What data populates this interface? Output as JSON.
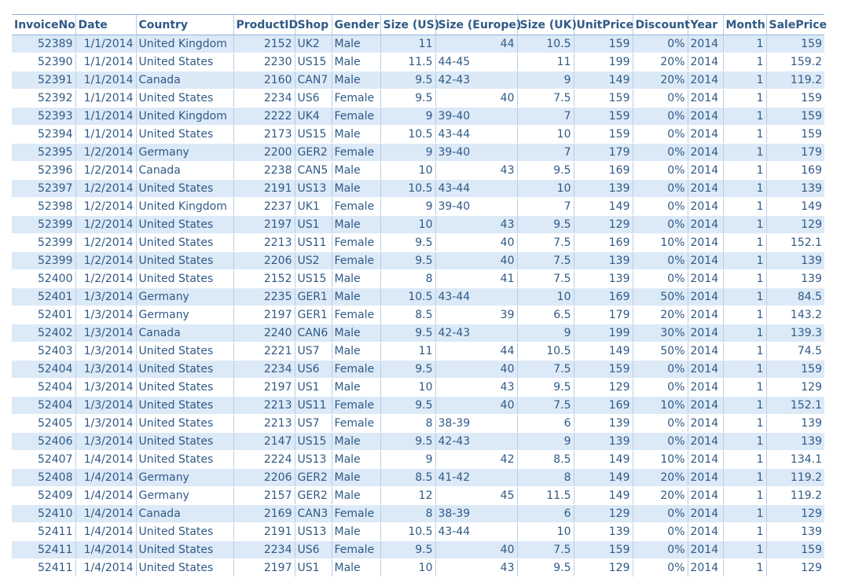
{
  "columns": [
    {
      "label": "InvoiceNo",
      "align": "num"
    },
    {
      "label": "Date",
      "align": "num"
    },
    {
      "label": "Country",
      "align": "txt"
    },
    {
      "label": "ProductID",
      "align": "num"
    },
    {
      "label": "Shop",
      "align": "txt"
    },
    {
      "label": "Gender",
      "align": "txt"
    },
    {
      "label": "Size (US)",
      "align": "num"
    },
    {
      "label": "Size (Europe)",
      "align": "mixed"
    },
    {
      "label": "Size (UK)",
      "align": "num"
    },
    {
      "label": "UnitPrice",
      "align": "num"
    },
    {
      "label": "Discount",
      "align": "num"
    },
    {
      "label": "Year",
      "align": "txt"
    },
    {
      "label": "Month",
      "align": "num"
    },
    {
      "label": "SalePrice",
      "align": "num"
    }
  ],
  "rows": [
    [
      "52389",
      "1/1/2014",
      "United Kingdom",
      "2152",
      "UK2",
      "Male",
      "11",
      "44",
      "10.5",
      "159",
      "0%",
      "2014",
      "1",
      "159"
    ],
    [
      "52390",
      "1/1/2014",
      "United States",
      "2230",
      "US15",
      "Male",
      "11.5",
      "44-45",
      "11",
      "199",
      "20%",
      "2014",
      "1",
      "159.2"
    ],
    [
      "52391",
      "1/1/2014",
      "Canada",
      "2160",
      "CAN7",
      "Male",
      "9.5",
      "42-43",
      "9",
      "149",
      "20%",
      "2014",
      "1",
      "119.2"
    ],
    [
      "52392",
      "1/1/2014",
      "United States",
      "2234",
      "US6",
      "Female",
      "9.5",
      "40",
      "7.5",
      "159",
      "0%",
      "2014",
      "1",
      "159"
    ],
    [
      "52393",
      "1/1/2014",
      "United Kingdom",
      "2222",
      "UK4",
      "Female",
      "9",
      "39-40",
      "7",
      "159",
      "0%",
      "2014",
      "1",
      "159"
    ],
    [
      "52394",
      "1/1/2014",
      "United States",
      "2173",
      "US15",
      "Male",
      "10.5",
      "43-44",
      "10",
      "159",
      "0%",
      "2014",
      "1",
      "159"
    ],
    [
      "52395",
      "1/2/2014",
      "Germany",
      "2200",
      "GER2",
      "Female",
      "9",
      "39-40",
      "7",
      "179",
      "0%",
      "2014",
      "1",
      "179"
    ],
    [
      "52396",
      "1/2/2014",
      "Canada",
      "2238",
      "CAN5",
      "Male",
      "10",
      "43",
      "9.5",
      "169",
      "0%",
      "2014",
      "1",
      "169"
    ],
    [
      "52397",
      "1/2/2014",
      "United States",
      "2191",
      "US13",
      "Male",
      "10.5",
      "43-44",
      "10",
      "139",
      "0%",
      "2014",
      "1",
      "139"
    ],
    [
      "52398",
      "1/2/2014",
      "United Kingdom",
      "2237",
      "UK1",
      "Female",
      "9",
      "39-40",
      "7",
      "149",
      "0%",
      "2014",
      "1",
      "149"
    ],
    [
      "52399",
      "1/2/2014",
      "United States",
      "2197",
      "US1",
      "Male",
      "10",
      "43",
      "9.5",
      "129",
      "0%",
      "2014",
      "1",
      "129"
    ],
    [
      "52399",
      "1/2/2014",
      "United States",
      "2213",
      "US11",
      "Female",
      "9.5",
      "40",
      "7.5",
      "169",
      "10%",
      "2014",
      "1",
      "152.1"
    ],
    [
      "52399",
      "1/2/2014",
      "United States",
      "2206",
      "US2",
      "Female",
      "9.5",
      "40",
      "7.5",
      "139",
      "0%",
      "2014",
      "1",
      "139"
    ],
    [
      "52400",
      "1/2/2014",
      "United States",
      "2152",
      "US15",
      "Male",
      "8",
      "41",
      "7.5",
      "139",
      "0%",
      "2014",
      "1",
      "139"
    ],
    [
      "52401",
      "1/3/2014",
      "Germany",
      "2235",
      "GER1",
      "Male",
      "10.5",
      "43-44",
      "10",
      "169",
      "50%",
      "2014",
      "1",
      "84.5"
    ],
    [
      "52401",
      "1/3/2014",
      "Germany",
      "2197",
      "GER1",
      "Female",
      "8.5",
      "39",
      "6.5",
      "179",
      "20%",
      "2014",
      "1",
      "143.2"
    ],
    [
      "52402",
      "1/3/2014",
      "Canada",
      "2240",
      "CAN6",
      "Male",
      "9.5",
      "42-43",
      "9",
      "199",
      "30%",
      "2014",
      "1",
      "139.3"
    ],
    [
      "52403",
      "1/3/2014",
      "United States",
      "2221",
      "US7",
      "Male",
      "11",
      "44",
      "10.5",
      "149",
      "50%",
      "2014",
      "1",
      "74.5"
    ],
    [
      "52404",
      "1/3/2014",
      "United States",
      "2234",
      "US6",
      "Female",
      "9.5",
      "40",
      "7.5",
      "159",
      "0%",
      "2014",
      "1",
      "159"
    ],
    [
      "52404",
      "1/3/2014",
      "United States",
      "2197",
      "US1",
      "Male",
      "10",
      "43",
      "9.5",
      "129",
      "0%",
      "2014",
      "1",
      "129"
    ],
    [
      "52404",
      "1/3/2014",
      "United States",
      "2213",
      "US11",
      "Female",
      "9.5",
      "40",
      "7.5",
      "169",
      "10%",
      "2014",
      "1",
      "152.1"
    ],
    [
      "52405",
      "1/3/2014",
      "United States",
      "2213",
      "US7",
      "Female",
      "8",
      "38-39",
      "6",
      "139",
      "0%",
      "2014",
      "1",
      "139"
    ],
    [
      "52406",
      "1/3/2014",
      "United States",
      "2147",
      "US15",
      "Male",
      "9.5",
      "42-43",
      "9",
      "139",
      "0%",
      "2014",
      "1",
      "139"
    ],
    [
      "52407",
      "1/4/2014",
      "United States",
      "2224",
      "US13",
      "Male",
      "9",
      "42",
      "8.5",
      "149",
      "10%",
      "2014",
      "1",
      "134.1"
    ],
    [
      "52408",
      "1/4/2014",
      "Germany",
      "2206",
      "GER2",
      "Male",
      "8.5",
      "41-42",
      "8",
      "149",
      "20%",
      "2014",
      "1",
      "119.2"
    ],
    [
      "52409",
      "1/4/2014",
      "Germany",
      "2157",
      "GER2",
      "Male",
      "12",
      "45",
      "11.5",
      "149",
      "20%",
      "2014",
      "1",
      "119.2"
    ],
    [
      "52410",
      "1/4/2014",
      "Canada",
      "2169",
      "CAN3",
      "Female",
      "8",
      "38-39",
      "6",
      "129",
      "0%",
      "2014",
      "1",
      "129"
    ],
    [
      "52411",
      "1/4/2014",
      "United States",
      "2191",
      "US13",
      "Male",
      "10.5",
      "43-44",
      "10",
      "139",
      "0%",
      "2014",
      "1",
      "139"
    ],
    [
      "52411",
      "1/4/2014",
      "United States",
      "2234",
      "US6",
      "Female",
      "9.5",
      "40",
      "7.5",
      "159",
      "0%",
      "2014",
      "1",
      "159"
    ],
    [
      "52411",
      "1/4/2014",
      "United States",
      "2197",
      "US1",
      "Male",
      "10",
      "43",
      "9.5",
      "129",
      "0%",
      "2014",
      "1",
      "129"
    ]
  ]
}
